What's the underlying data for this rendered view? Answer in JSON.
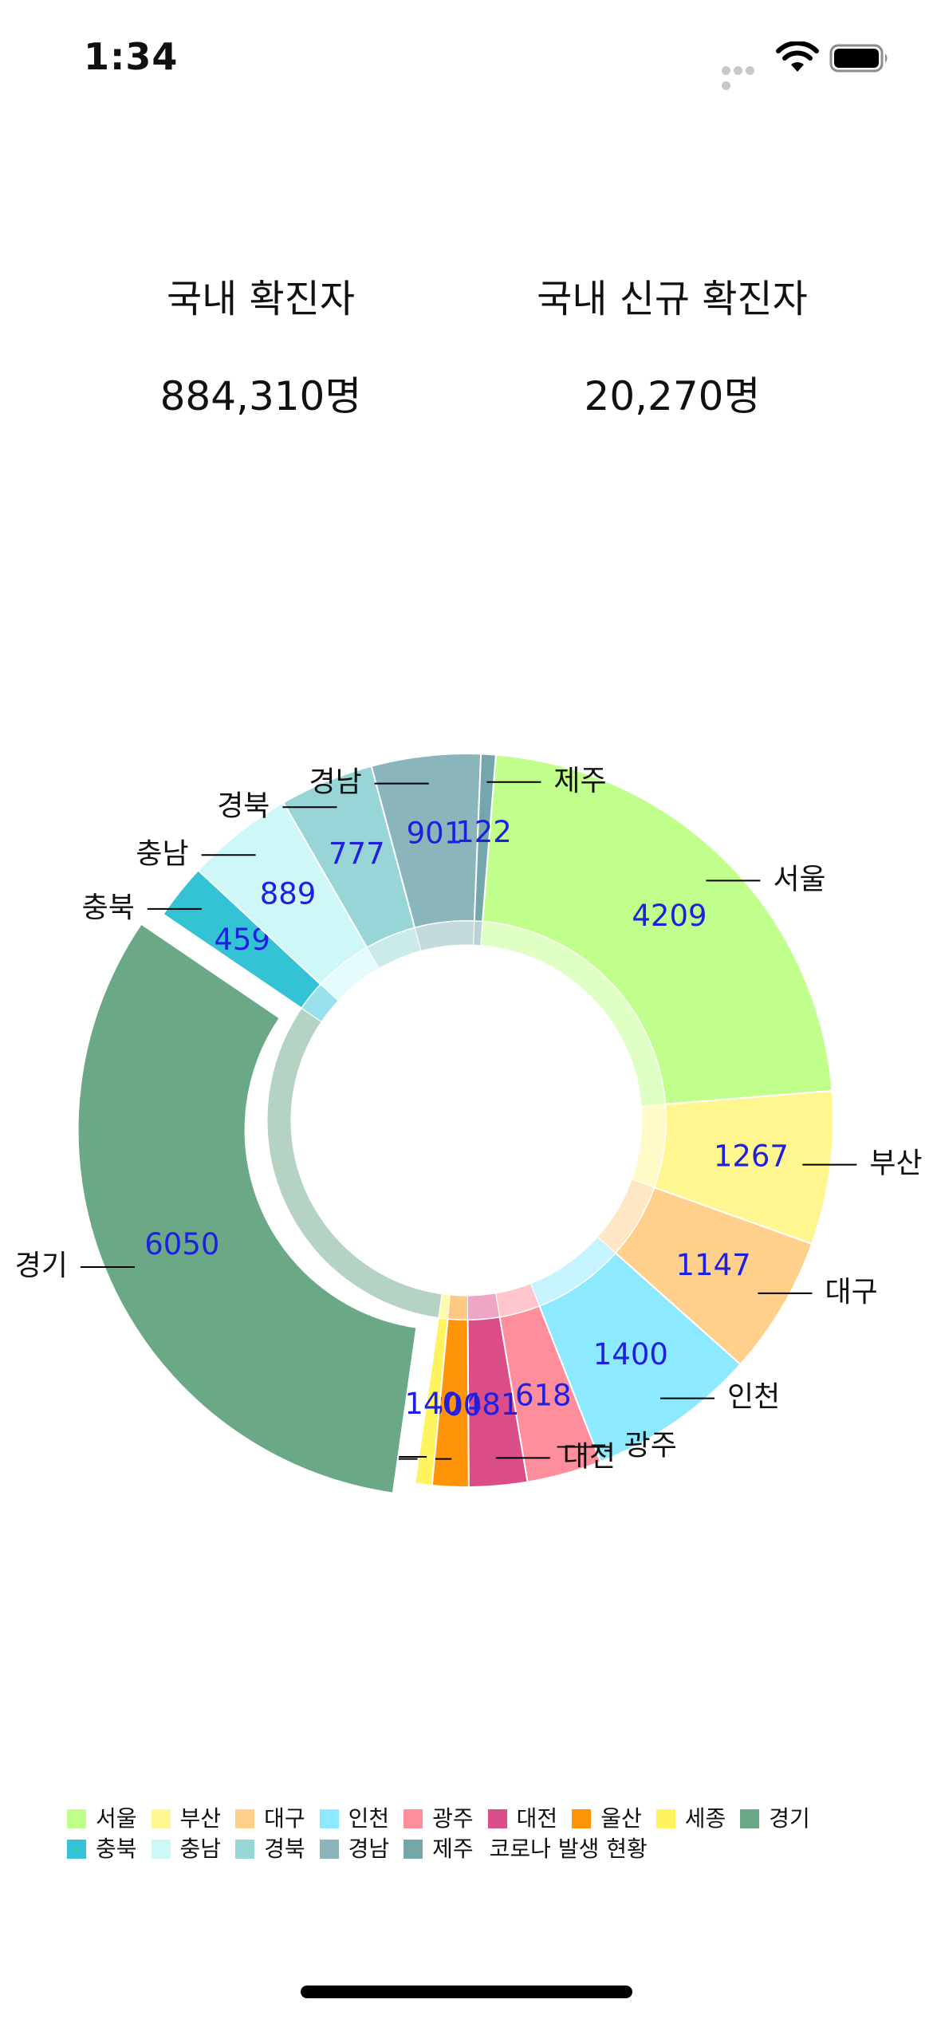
{
  "status_bar": {
    "time": "1:34"
  },
  "stats": {
    "total_label": "국내 확진자",
    "total_value": "884,310명",
    "new_label": "국내 신규 확진자",
    "new_value": "20,270명"
  },
  "legend": {
    "description": "코로나 발생 현황"
  },
  "chart_data": {
    "type": "pie",
    "title": "",
    "categories": [
      "서울",
      "부산",
      "대구",
      "인천",
      "광주",
      "대전",
      "울산",
      "세종",
      "경기",
      "충북",
      "충남",
      "경북",
      "경남",
      "제주"
    ],
    "values": [
      4209,
      1267,
      1147,
      1400,
      618,
      481,
      300,
      140,
      6050,
      459,
      889,
      777,
      901,
      122
    ],
    "colors": [
      "#c1ff8c",
      "#fff68f",
      "#ffd08c",
      "#8ce9ff",
      "#ff8e9c",
      "#db4d87",
      "#ff9408",
      "#fff35f",
      "#6aa886",
      "#34c3d5",
      "#cef8f8",
      "#97d5d6",
      "#8ab5bb",
      "#74a6ac"
    ],
    "highlighted": [
      "경기"
    ],
    "legend_position": "bottom-left",
    "value_label_color": "#1f1fe0"
  }
}
